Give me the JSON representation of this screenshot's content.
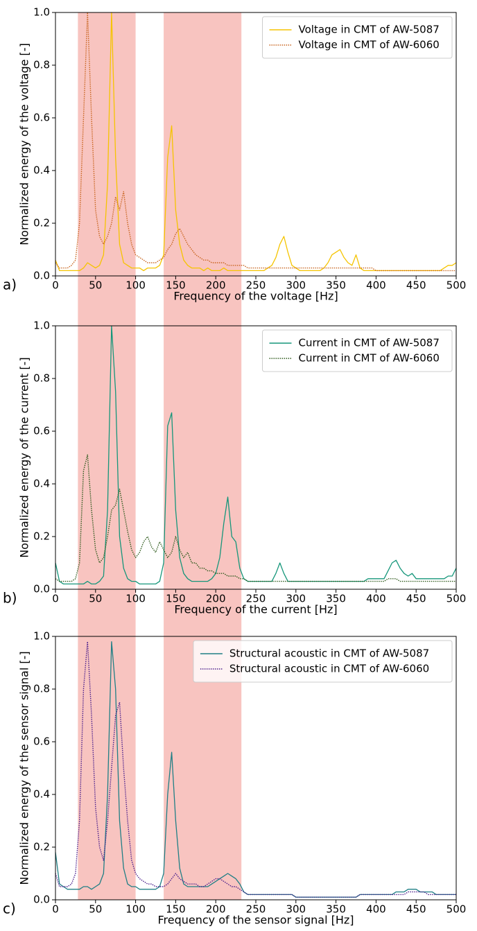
{
  "shaded_regions": {
    "color": "#f8c4c0",
    "ranges": [
      [
        28,
        100
      ],
      [
        135,
        232
      ]
    ]
  },
  "chart_data": [
    {
      "type": "line",
      "panel_label": "a)",
      "xlabel": "Frequency of the voltage [Hz]",
      "ylabel": "Normalized energy of the voltage [-]",
      "xlim": [
        0,
        500
      ],
      "ylim": [
        0,
        1
      ],
      "xticks": [
        0,
        50,
        100,
        150,
        200,
        250,
        300,
        350,
        400,
        450,
        500
      ],
      "yticks": [
        {
          "value": 0,
          "label": "0.0"
        },
        {
          "value": 0.2,
          "label": "0.2"
        },
        {
          "value": 0.4,
          "label": "0.4"
        },
        {
          "value": 0.6,
          "label": "0.6"
        },
        {
          "value": 0.8,
          "label": "0.8"
        },
        {
          "value": 1,
          "label": "1.0"
        }
      ],
      "legend": "upper right",
      "x": [
        0,
        5,
        10,
        15,
        20,
        25,
        30,
        35,
        40,
        45,
        50,
        55,
        60,
        65,
        70,
        75,
        80,
        85,
        90,
        95,
        100,
        105,
        110,
        115,
        120,
        125,
        130,
        135,
        140,
        145,
        150,
        155,
        160,
        165,
        170,
        175,
        180,
        185,
        190,
        195,
        200,
        205,
        210,
        215,
        220,
        225,
        230,
        235,
        240,
        245,
        250,
        255,
        260,
        265,
        270,
        275,
        280,
        285,
        290,
        295,
        300,
        305,
        310,
        315,
        320,
        325,
        330,
        335,
        340,
        345,
        350,
        355,
        360,
        365,
        370,
        375,
        380,
        385,
        390,
        395,
        400,
        405,
        410,
        415,
        420,
        425,
        430,
        435,
        440,
        445,
        450,
        455,
        460,
        465,
        470,
        475,
        480,
        485,
        490,
        495,
        500
      ],
      "series": [
        {
          "name": "Voltage in CMT of AW-5087",
          "color": "#f5c400",
          "linestyle": "solid",
          "values": [
            0.06,
            0.02,
            0.02,
            0.02,
            0.02,
            0.02,
            0.02,
            0.03,
            0.05,
            0.04,
            0.03,
            0.04,
            0.08,
            0.35,
            1.0,
            0.45,
            0.12,
            0.05,
            0.04,
            0.03,
            0.03,
            0.03,
            0.02,
            0.03,
            0.03,
            0.03,
            0.04,
            0.08,
            0.45,
            0.57,
            0.25,
            0.12,
            0.06,
            0.04,
            0.03,
            0.03,
            0.03,
            0.02,
            0.03,
            0.02,
            0.02,
            0.02,
            0.03,
            0.02,
            0.02,
            0.02,
            0.02,
            0.02,
            0.02,
            0.02,
            0.02,
            0.02,
            0.02,
            0.03,
            0.04,
            0.07,
            0.12,
            0.15,
            0.09,
            0.04,
            0.03,
            0.02,
            0.02,
            0.02,
            0.02,
            0.02,
            0.02,
            0.03,
            0.05,
            0.08,
            0.09,
            0.1,
            0.07,
            0.05,
            0.04,
            0.08,
            0.03,
            0.02,
            0.02,
            0.02,
            0.02,
            0.02,
            0.02,
            0.02,
            0.02,
            0.02,
            0.02,
            0.02,
            0.02,
            0.02,
            0.02,
            0.02,
            0.02,
            0.02,
            0.02,
            0.02,
            0.02,
            0.03,
            0.04,
            0.04,
            0.05
          ]
        },
        {
          "name": "Voltage in CMT of AW-6060",
          "color": "#c8641e",
          "linestyle": "dotted",
          "values": [
            0.05,
            0.03,
            0.03,
            0.03,
            0.04,
            0.06,
            0.2,
            0.6,
            1.0,
            0.6,
            0.25,
            0.15,
            0.12,
            0.15,
            0.2,
            0.3,
            0.25,
            0.32,
            0.2,
            0.12,
            0.08,
            0.07,
            0.06,
            0.05,
            0.05,
            0.05,
            0.06,
            0.07,
            0.1,
            0.12,
            0.16,
            0.18,
            0.15,
            0.12,
            0.1,
            0.08,
            0.07,
            0.06,
            0.06,
            0.05,
            0.05,
            0.05,
            0.05,
            0.04,
            0.04,
            0.04,
            0.04,
            0.04,
            0.03,
            0.03,
            0.03,
            0.03,
            0.03,
            0.03,
            0.03,
            0.03,
            0.03,
            0.03,
            0.03,
            0.03,
            0.03,
            0.03,
            0.03,
            0.03,
            0.03,
            0.03,
            0.03,
            0.03,
            0.03,
            0.03,
            0.03,
            0.03,
            0.03,
            0.03,
            0.03,
            0.03,
            0.03,
            0.03,
            0.03,
            0.03,
            0.02,
            0.02,
            0.02,
            0.02,
            0.02,
            0.02,
            0.02,
            0.02,
            0.02,
            0.02,
            0.02,
            0.02,
            0.02,
            0.02,
            0.02,
            0.02,
            0.02,
            0.02,
            0.02,
            0.02,
            0.02
          ]
        }
      ]
    },
    {
      "type": "line",
      "panel_label": "b)",
      "xlabel": "Frequency of the current [Hz]",
      "ylabel": "Normalized energy of the current [-]",
      "xlim": [
        0,
        500
      ],
      "ylim": [
        0,
        1
      ],
      "xticks": [
        0,
        50,
        100,
        150,
        200,
        250,
        300,
        350,
        400,
        450,
        500
      ],
      "yticks": [
        {
          "value": 0,
          "label": "0.0"
        },
        {
          "value": 0.2,
          "label": "0.2"
        },
        {
          "value": 0.4,
          "label": "0.4"
        },
        {
          "value": 0.6,
          "label": "0.6"
        },
        {
          "value": 0.8,
          "label": "0.8"
        },
        {
          "value": 1,
          "label": "1.0"
        }
      ],
      "legend": "upper right",
      "x": [
        0,
        5,
        10,
        15,
        20,
        25,
        30,
        35,
        40,
        45,
        50,
        55,
        60,
        65,
        70,
        75,
        80,
        85,
        90,
        95,
        100,
        105,
        110,
        115,
        120,
        125,
        130,
        135,
        140,
        145,
        150,
        155,
        160,
        165,
        170,
        175,
        180,
        185,
        190,
        195,
        200,
        205,
        210,
        215,
        220,
        225,
        230,
        235,
        240,
        245,
        250,
        255,
        260,
        265,
        270,
        275,
        280,
        285,
        290,
        295,
        300,
        305,
        310,
        315,
        320,
        325,
        330,
        335,
        340,
        345,
        350,
        355,
        360,
        365,
        370,
        375,
        380,
        385,
        390,
        395,
        400,
        405,
        410,
        415,
        420,
        425,
        430,
        435,
        440,
        445,
        450,
        455,
        460,
        465,
        470,
        475,
        480,
        485,
        490,
        495,
        500
      ],
      "series": [
        {
          "name": "Current in CMT of AW-5087",
          "color": "#15967a",
          "linestyle": "solid",
          "values": [
            0.1,
            0.03,
            0.02,
            0.02,
            0.02,
            0.02,
            0.02,
            0.02,
            0.03,
            0.02,
            0.02,
            0.03,
            0.05,
            0.3,
            1.0,
            0.75,
            0.2,
            0.08,
            0.04,
            0.03,
            0.03,
            0.02,
            0.02,
            0.02,
            0.02,
            0.02,
            0.03,
            0.1,
            0.62,
            0.67,
            0.3,
            0.12,
            0.06,
            0.04,
            0.03,
            0.03,
            0.03,
            0.03,
            0.03,
            0.04,
            0.06,
            0.12,
            0.25,
            0.35,
            0.2,
            0.18,
            0.08,
            0.04,
            0.03,
            0.03,
            0.03,
            0.03,
            0.03,
            0.03,
            0.03,
            0.06,
            0.1,
            0.06,
            0.03,
            0.03,
            0.03,
            0.03,
            0.03,
            0.03,
            0.03,
            0.03,
            0.03,
            0.03,
            0.03,
            0.03,
            0.03,
            0.03,
            0.03,
            0.03,
            0.03,
            0.03,
            0.03,
            0.03,
            0.04,
            0.04,
            0.04,
            0.04,
            0.04,
            0.07,
            0.1,
            0.11,
            0.08,
            0.06,
            0.05,
            0.06,
            0.04,
            0.04,
            0.04,
            0.04,
            0.04,
            0.04,
            0.04,
            0.04,
            0.05,
            0.05,
            0.08
          ]
        },
        {
          "name": "Current in CMT of AW-6060",
          "color": "#2e5a1c",
          "linestyle": "dotted",
          "values": [
            0.04,
            0.03,
            0.03,
            0.03,
            0.03,
            0.04,
            0.1,
            0.45,
            0.51,
            0.3,
            0.15,
            0.1,
            0.12,
            0.2,
            0.3,
            0.32,
            0.38,
            0.3,
            0.22,
            0.15,
            0.12,
            0.14,
            0.18,
            0.2,
            0.16,
            0.14,
            0.18,
            0.15,
            0.12,
            0.14,
            0.2,
            0.15,
            0.12,
            0.14,
            0.1,
            0.1,
            0.08,
            0.08,
            0.07,
            0.07,
            0.06,
            0.06,
            0.06,
            0.05,
            0.05,
            0.05,
            0.04,
            0.04,
            0.03,
            0.03,
            0.03,
            0.03,
            0.03,
            0.03,
            0.03,
            0.03,
            0.03,
            0.03,
            0.03,
            0.03,
            0.03,
            0.03,
            0.03,
            0.03,
            0.03,
            0.03,
            0.03,
            0.03,
            0.03,
            0.03,
            0.03,
            0.03,
            0.03,
            0.03,
            0.03,
            0.03,
            0.03,
            0.03,
            0.03,
            0.03,
            0.03,
            0.03,
            0.03,
            0.04,
            0.04,
            0.04,
            0.03,
            0.03,
            0.03,
            0.03,
            0.03,
            0.03,
            0.03,
            0.03,
            0.03,
            0.03,
            0.03,
            0.03,
            0.03,
            0.03,
            0.03
          ]
        }
      ]
    },
    {
      "type": "line",
      "panel_label": "c)",
      "xlabel": "Frequency of the sensor signal [Hz]",
      "ylabel": "Normalized energy of the sensor signal [-]",
      "xlim": [
        0,
        500
      ],
      "ylim": [
        0,
        1
      ],
      "xticks": [
        0,
        50,
        100,
        150,
        200,
        250,
        300,
        350,
        400,
        450,
        500
      ],
      "yticks": [
        {
          "value": 0,
          "label": "0.0"
        },
        {
          "value": 0.2,
          "label": "0.2"
        },
        {
          "value": 0.4,
          "label": "0.4"
        },
        {
          "value": 0.6,
          "label": "0.6"
        },
        {
          "value": 0.8,
          "label": "0.8"
        },
        {
          "value": 1,
          "label": "1.0"
        }
      ],
      "legend": "upper right",
      "x": [
        0,
        5,
        10,
        15,
        20,
        25,
        30,
        35,
        40,
        45,
        50,
        55,
        60,
        65,
        70,
        75,
        80,
        85,
        90,
        95,
        100,
        105,
        110,
        115,
        120,
        125,
        130,
        135,
        140,
        145,
        150,
        155,
        160,
        165,
        170,
        175,
        180,
        185,
        190,
        195,
        200,
        205,
        210,
        215,
        220,
        225,
        230,
        235,
        240,
        245,
        250,
        255,
        260,
        265,
        270,
        275,
        280,
        285,
        290,
        295,
        300,
        305,
        310,
        315,
        320,
        325,
        330,
        335,
        340,
        345,
        350,
        355,
        360,
        365,
        370,
        375,
        380,
        385,
        390,
        395,
        400,
        405,
        410,
        415,
        420,
        425,
        430,
        435,
        440,
        445,
        450,
        455,
        460,
        465,
        470,
        475,
        480,
        485,
        490,
        495,
        500
      ],
      "series": [
        {
          "name": "Structural acoustic in CMT of AW-5087",
          "color": "#1f7f85",
          "linestyle": "solid",
          "values": [
            0.18,
            0.06,
            0.05,
            0.04,
            0.04,
            0.04,
            0.04,
            0.05,
            0.05,
            0.04,
            0.05,
            0.06,
            0.1,
            0.4,
            0.98,
            0.8,
            0.3,
            0.12,
            0.06,
            0.05,
            0.05,
            0.04,
            0.04,
            0.04,
            0.04,
            0.04,
            0.05,
            0.1,
            0.4,
            0.56,
            0.3,
            0.12,
            0.06,
            0.05,
            0.05,
            0.05,
            0.05,
            0.05,
            0.05,
            0.06,
            0.07,
            0.08,
            0.09,
            0.1,
            0.09,
            0.08,
            0.06,
            0.03,
            0.02,
            0.02,
            0.02,
            0.02,
            0.02,
            0.02,
            0.02,
            0.02,
            0.02,
            0.02,
            0.02,
            0.02,
            0.01,
            0.01,
            0.01,
            0.01,
            0.01,
            0.01,
            0.01,
            0.01,
            0.01,
            0.01,
            0.01,
            0.01,
            0.01,
            0.01,
            0.01,
            0.01,
            0.02,
            0.02,
            0.02,
            0.02,
            0.02,
            0.02,
            0.02,
            0.02,
            0.02,
            0.03,
            0.03,
            0.03,
            0.04,
            0.04,
            0.04,
            0.03,
            0.03,
            0.03,
            0.03,
            0.02,
            0.02,
            0.02,
            0.02,
            0.02,
            0.02
          ]
        },
        {
          "name": "Structural acoustic in CMT of AW-6060",
          "color": "#4b1f8c",
          "linestyle": "dotted",
          "values": [
            0.1,
            0.05,
            0.05,
            0.05,
            0.06,
            0.1,
            0.3,
            0.8,
            0.98,
            0.7,
            0.35,
            0.2,
            0.15,
            0.3,
            0.5,
            0.7,
            0.75,
            0.5,
            0.3,
            0.15,
            0.1,
            0.08,
            0.07,
            0.06,
            0.06,
            0.05,
            0.05,
            0.05,
            0.06,
            0.08,
            0.1,
            0.08,
            0.07,
            0.06,
            0.06,
            0.06,
            0.05,
            0.05,
            0.06,
            0.07,
            0.08,
            0.08,
            0.07,
            0.06,
            0.05,
            0.05,
            0.04,
            0.03,
            0.02,
            0.02,
            0.02,
            0.02,
            0.02,
            0.02,
            0.02,
            0.02,
            0.02,
            0.02,
            0.02,
            0.02,
            0.01,
            0.01,
            0.01,
            0.01,
            0.01,
            0.01,
            0.01,
            0.01,
            0.01,
            0.01,
            0.01,
            0.01,
            0.01,
            0.01,
            0.01,
            0.01,
            0.02,
            0.02,
            0.02,
            0.02,
            0.02,
            0.02,
            0.02,
            0.02,
            0.02,
            0.02,
            0.02,
            0.02,
            0.03,
            0.03,
            0.03,
            0.03,
            0.03,
            0.02,
            0.02,
            0.02,
            0.02,
            0.02,
            0.02,
            0.02,
            0.02
          ]
        }
      ]
    }
  ]
}
